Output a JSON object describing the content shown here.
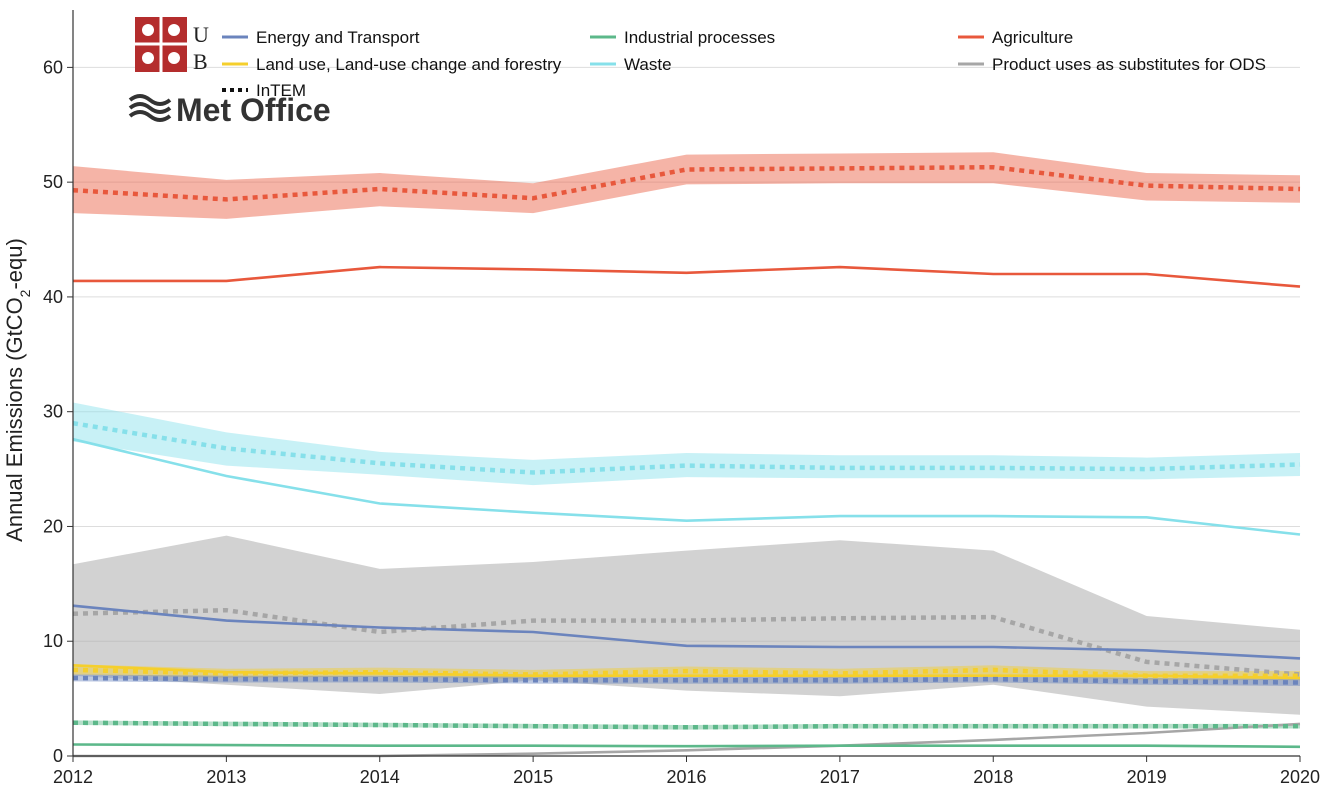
{
  "chart_data": {
    "type": "line",
    "title": "",
    "xlabel": "",
    "ylabel": "Annual Emissions (GtCO",
    "ylabel_sub": "2",
    "ylabel_suffix": "-equ)",
    "x": [
      2012,
      2013,
      2014,
      2015,
      2016,
      2017,
      2018,
      2019,
      2020
    ],
    "xticks": [
      "2012",
      "2013",
      "2014",
      "2015",
      "2016",
      "2017",
      "2018",
      "2019",
      "2020"
    ],
    "yticks": [
      "0",
      "10",
      "20",
      "30",
      "40",
      "50",
      "60"
    ],
    "xlim": [
      2012,
      2020
    ],
    "ylim": [
      0,
      65
    ],
    "grid": "horizontal",
    "legend_position": "top",
    "series": [
      {
        "name": "Energy and Transport",
        "color": "#6b84bd",
        "inventory": [
          13.1,
          11.8,
          11.2,
          10.8,
          9.6,
          9.5,
          9.5,
          9.2,
          8.5
        ],
        "intem": [
          6.8,
          6.7,
          6.7,
          6.6,
          6.6,
          6.6,
          6.7,
          6.5,
          6.4
        ],
        "intem_low": [
          6.5,
          6.4,
          6.4,
          6.3,
          6.3,
          6.3,
          6.4,
          6.2,
          6.1
        ],
        "intem_high": [
          7.1,
          7.0,
          7.0,
          6.9,
          6.9,
          6.9,
          7.0,
          6.8,
          6.7
        ]
      },
      {
        "name": "Industrial processes",
        "color": "#5cb88a",
        "inventory": [
          1.0,
          0.95,
          0.9,
          0.9,
          0.85,
          0.9,
          0.9,
          0.9,
          0.8
        ],
        "intem": [
          2.9,
          2.8,
          2.7,
          2.6,
          2.5,
          2.6,
          2.6,
          2.6,
          2.6
        ],
        "intem_low": [
          2.7,
          2.6,
          2.5,
          2.4,
          2.3,
          2.4,
          2.4,
          2.4,
          2.4
        ],
        "intem_high": [
          3.1,
          3.0,
          2.9,
          2.8,
          2.7,
          2.8,
          2.8,
          2.8,
          2.8
        ]
      },
      {
        "name": "Agriculture",
        "color": "#e8583c",
        "inventory": [
          41.4,
          41.4,
          42.6,
          42.4,
          42.1,
          42.6,
          42.0,
          42.0,
          40.9
        ],
        "intem": [
          49.3,
          48.5,
          49.4,
          48.6,
          51.1,
          51.2,
          51.3,
          49.7,
          49.4
        ],
        "intem_low": [
          47.3,
          46.8,
          47.9,
          47.3,
          49.8,
          49.9,
          49.9,
          48.4,
          48.2
        ],
        "intem_high": [
          51.4,
          50.2,
          50.8,
          49.9,
          52.4,
          52.5,
          52.6,
          50.8,
          50.6
        ]
      },
      {
        "name": "Land use, Land-use change and forestry",
        "color": "#f5cf2c",
        "inventory": [
          7.9,
          7.3,
          7.2,
          7.0,
          7.0,
          7.0,
          7.0,
          7.0,
          6.8
        ],
        "intem": [
          7.5,
          7.2,
          7.3,
          7.1,
          7.4,
          7.2,
          7.5,
          7.0,
          7.0
        ],
        "intem_low": [
          7.1,
          6.8,
          6.9,
          6.7,
          7.0,
          6.8,
          7.1,
          6.6,
          6.6
        ],
        "intem_high": [
          8.0,
          7.6,
          7.7,
          7.5,
          7.8,
          7.6,
          7.9,
          7.4,
          7.4
        ]
      },
      {
        "name": "Waste",
        "color": "#86e0ea",
        "inventory": [
          27.6,
          24.4,
          22.0,
          21.2,
          20.5,
          20.9,
          20.9,
          20.8,
          19.3
        ],
        "intem": [
          29.0,
          26.8,
          25.5,
          24.7,
          25.3,
          25.1,
          25.1,
          25.0,
          25.4
        ],
        "intem_low": [
          27.4,
          25.3,
          24.5,
          23.6,
          24.3,
          24.2,
          24.2,
          24.1,
          24.4
        ],
        "intem_high": [
          30.8,
          28.2,
          26.5,
          25.8,
          26.4,
          26.2,
          26.2,
          26.0,
          26.4
        ]
      },
      {
        "name": "Product uses as substitutes for ODS",
        "color": "#a6a6a6",
        "inventory": [
          0.0,
          0.0,
          0.0,
          0.2,
          0.5,
          0.9,
          1.4,
          2.0,
          2.8
        ],
        "intem": [
          12.4,
          12.7,
          10.8,
          11.8,
          11.8,
          12.0,
          12.1,
          8.2,
          7.1
        ],
        "intem_low": [
          7.0,
          6.2,
          5.4,
          6.6,
          5.7,
          5.2,
          6.2,
          4.3,
          3.6
        ],
        "intem_high": [
          16.7,
          19.2,
          16.3,
          16.9,
          17.9,
          18.8,
          17.9,
          12.2,
          11.0
        ]
      }
    ],
    "legend": [
      {
        "label": "Energy and Transport",
        "color": "#6b84bd",
        "style": "solid"
      },
      {
        "label": "Industrial processes",
        "color": "#5cb88a",
        "style": "solid"
      },
      {
        "label": "Agriculture",
        "color": "#e8583c",
        "style": "solid"
      },
      {
        "label": "Land use, Land-use change and forestry",
        "color": "#f5cf2c",
        "style": "solid"
      },
      {
        "label": "Waste",
        "color": "#86e0ea",
        "style": "solid"
      },
      {
        "label": "Product uses as substitutes for ODS",
        "color": "#a6a6a6",
        "style": "solid"
      },
      {
        "label": "InTEM",
        "color": "#111111",
        "style": "dotted"
      }
    ],
    "logos": {
      "university_partial_text": "U",
      "university_partial_text2": "B",
      "metoffice": "Met Office",
      "crest_color": "#b42d2d"
    }
  }
}
